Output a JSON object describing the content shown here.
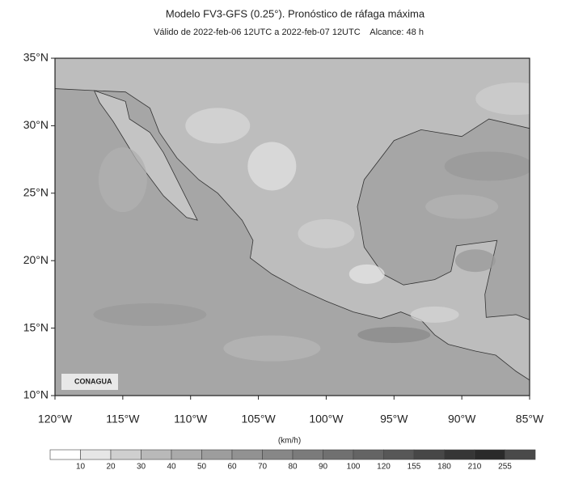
{
  "header": {
    "title": "Modelo FV3-GFS (0.25°). Pronóstico de ráfaga máxima",
    "subtitle": "Válido de 2022-feb-06 12UTC a 2022-feb-07 12UTC    Alcance: 48 h"
  },
  "map": {
    "lat_ticks": [
      "35°N",
      "30°N",
      "25°N",
      "20°N",
      "15°N",
      "10°N"
    ],
    "lon_ticks": [
      "120°W",
      "115°W",
      "110°W",
      "105°W",
      "100°W",
      "95°W",
      "90°W",
      "85°W"
    ],
    "logo": "CONAGUA"
  },
  "colorbar": {
    "units": "(km/h)",
    "labels": [
      10,
      20,
      30,
      40,
      50,
      60,
      70,
      80,
      90,
      100,
      120,
      155,
      180,
      210,
      255
    ],
    "colors": [
      "#ffffff",
      "#e6e6e6",
      "#cfcfcf",
      "#b9b9b9",
      "#aaaaaa",
      "#9d9d9d",
      "#929292",
      "#878787",
      "#7b7b7b",
      "#707070",
      "#646464",
      "#575757",
      "#474747",
      "#363636",
      "#2a2a2a",
      "#4a4a4a"
    ]
  }
}
